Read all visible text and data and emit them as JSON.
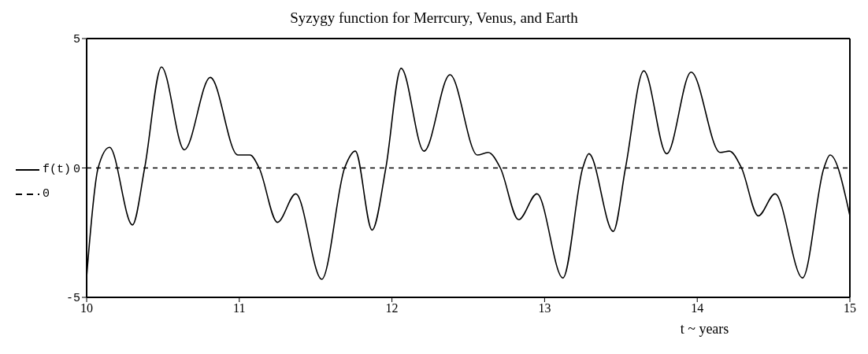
{
  "chart_data": {
    "type": "line",
    "title": "Syzygy function for Merrcury, Venus, and Earth",
    "xlabel": "t ~ years",
    "xlim": [
      10,
      15
    ],
    "xticks": [
      10,
      11,
      12,
      13,
      14,
      15
    ],
    "ylim": [
      -5,
      5
    ],
    "yticks": [
      -5,
      0,
      5
    ],
    "legend": "left",
    "marker": "none",
    "series": [
      {
        "name": "f(t)",
        "color": "#000000",
        "line_style": "solid",
        "x": [
          10,
          10.075,
          10.15,
          10.3,
          10.38,
          10.49,
          10.64,
          10.81,
          10.99,
          11.07,
          11.13,
          11.25,
          11.37,
          11.54,
          11.69,
          11.76,
          11.87,
          11.96,
          12.06,
          12.21,
          12.38,
          12.56,
          12.63,
          12.71,
          12.83,
          12.95,
          13.12,
          13.25,
          13.29,
          13.45,
          13.53,
          13.65,
          13.8,
          13.96,
          14.15,
          14.21,
          14.29,
          14.4,
          14.51,
          14.69,
          14.83,
          14.87,
          15
        ],
        "values": [
          -4.2,
          0,
          0.8,
          -2.2,
          0,
          3.9,
          0.7,
          3.5,
          0.5,
          0.5,
          0,
          -2.1,
          -1,
          -4.3,
          0,
          0.65,
          -2.4,
          0,
          3.85,
          0.65,
          3.6,
          0.5,
          0.6,
          0,
          -2,
          -1,
          -4.25,
          0,
          0.55,
          -2.45,
          0,
          3.75,
          0.55,
          3.7,
          0.6,
          0.65,
          0,
          -1.85,
          -1,
          -4.25,
          0,
          0.5,
          -1.85
        ]
      },
      {
        "name": "0",
        "color": "#000000",
        "line_style": "dashed",
        "x": [
          10,
          15
        ],
        "values": [
          0,
          0
        ]
      }
    ]
  }
}
